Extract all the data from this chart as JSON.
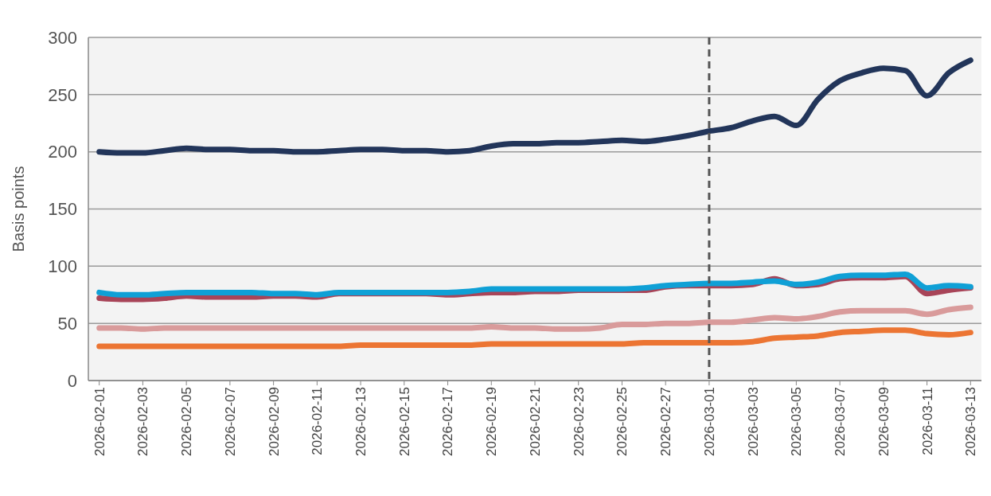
{
  "chart_data": {
    "type": "line",
    "ylabel": "Basis points",
    "x": [
      "2026-02-01",
      "2026-02-02",
      "2026-02-03",
      "2026-02-04",
      "2026-02-05",
      "2026-02-06",
      "2026-02-07",
      "2026-02-08",
      "2026-02-09",
      "2026-02-10",
      "2026-02-11",
      "2026-02-12",
      "2026-02-13",
      "2026-02-14",
      "2026-02-15",
      "2026-02-16",
      "2026-02-17",
      "2026-02-18",
      "2026-02-19",
      "2026-02-20",
      "2026-02-21",
      "2026-02-22",
      "2026-02-23",
      "2026-02-24",
      "2026-02-25",
      "2026-02-26",
      "2026-02-27",
      "2026-02-28",
      "2026-03-01",
      "2026-03-02",
      "2026-03-03",
      "2026-03-04",
      "2026-03-05",
      "2026-03-06",
      "2026-03-07",
      "2026-03-08",
      "2026-03-09",
      "2026-03-10",
      "2026-03-11",
      "2026-03-12",
      "2026-03-13"
    ],
    "series": [
      {
        "color": "#ec7533",
        "values": [
          30,
          30,
          30,
          30,
          30,
          30,
          30,
          30,
          30,
          30,
          30,
          30,
          31,
          31,
          31,
          31,
          31,
          31,
          32,
          32,
          32,
          32,
          32,
          32,
          32,
          33,
          33,
          33,
          33,
          33,
          34,
          37,
          38,
          39,
          42,
          43,
          44,
          44,
          41,
          40,
          42
        ]
      },
      {
        "color": "#d99b9b",
        "values": [
          46,
          46,
          45,
          46,
          46,
          46,
          46,
          46,
          46,
          46,
          46,
          46,
          46,
          46,
          46,
          46,
          46,
          46,
          47,
          46,
          46,
          45,
          45,
          46,
          49,
          49,
          50,
          50,
          51,
          51,
          53,
          55,
          54,
          56,
          60,
          61,
          61,
          61,
          58,
          62,
          64
        ]
      },
      {
        "color": "#a84458",
        "values": [
          72,
          71,
          71,
          72,
          74,
          73,
          73,
          73,
          74,
          74,
          73,
          76,
          76,
          76,
          76,
          76,
          75,
          76,
          77,
          77,
          78,
          78,
          79,
          79,
          79,
          79,
          82,
          83,
          83,
          83,
          84,
          89,
          83,
          84,
          89,
          90,
          90,
          91,
          76,
          79,
          81
        ]
      },
      {
        "color": "#0fa0d6",
        "values": [
          77,
          75,
          75,
          76,
          77,
          77,
          77,
          77,
          76,
          76,
          75,
          77,
          77,
          77,
          77,
          77,
          77,
          78,
          80,
          80,
          80,
          80,
          80,
          80,
          80,
          81,
          83,
          84,
          85,
          85,
          86,
          87,
          84,
          86,
          91,
          92,
          92,
          93,
          81,
          83,
          82
        ]
      },
      {
        "color": "#22355a",
        "values": [
          200,
          199,
          199,
          201,
          203,
          202,
          202,
          201,
          201,
          200,
          200,
          201,
          202,
          202,
          201,
          201,
          200,
          201,
          205,
          207,
          207,
          208,
          208,
          209,
          210,
          209,
          211,
          214,
          218,
          221,
          227,
          231,
          223,
          246,
          262,
          269,
          273,
          271,
          249,
          269,
          280
        ]
      }
    ],
    "xlim": [
      "2026-01-31T12:00",
      "2026-03-13T12:00"
    ],
    "xticks": [
      {
        "value": "2026-02-01",
        "label": "2026-02-01"
      },
      {
        "value": "2026-02-03",
        "label": "2026-02-03"
      },
      {
        "value": "2026-02-05",
        "label": "2026-02-05"
      },
      {
        "value": "2026-02-07",
        "label": "2026-02-07"
      },
      {
        "value": "2026-02-09",
        "label": "2026-02-09"
      },
      {
        "value": "2026-02-11",
        "label": "2026-02-11"
      },
      {
        "value": "2026-02-13",
        "label": "2026-02-13"
      },
      {
        "value": "2026-02-15",
        "label": "2026-02-15"
      },
      {
        "value": "2026-02-17",
        "label": "2026-02-17"
      },
      {
        "value": "2026-02-19",
        "label": "2026-02-19"
      },
      {
        "value": "2026-02-21",
        "label": "2026-02-21"
      },
      {
        "value": "2026-02-23",
        "label": "2026-02-23"
      },
      {
        "value": "2026-02-25",
        "label": "2026-02-25"
      },
      {
        "value": "2026-02-27",
        "label": "2026-02-27"
      },
      {
        "value": "2026-03-01",
        "label": "2026-03-01"
      },
      {
        "value": "2026-03-03",
        "label": "2026-03-03"
      },
      {
        "value": "2026-03-05",
        "label": "2026-03-05"
      },
      {
        "value": "2026-03-07",
        "label": "2026-03-07"
      },
      {
        "value": "2026-03-09",
        "label": "2026-03-09"
      },
      {
        "value": "2026-03-11",
        "label": "2026-03-11"
      },
      {
        "value": "2026-03-13",
        "label": "2026-03-13"
      }
    ],
    "ylim": [
      0,
      300
    ],
    "yticks": [
      0,
      50,
      100,
      150,
      200,
      250,
      300
    ],
    "grid": "y",
    "ref_lines": [
      {
        "axis": "x",
        "value": "2026-03-01",
        "color": "#555555",
        "line_style": "dashed"
      }
    ],
    "line_style": "solid",
    "marker": "none"
  }
}
